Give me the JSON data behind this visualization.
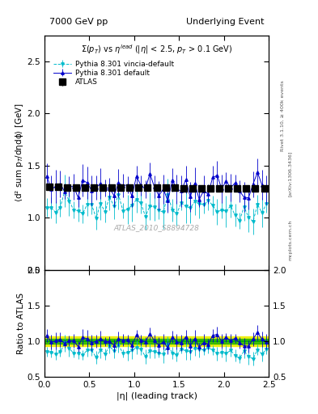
{
  "title_left": "7000 GeV pp",
  "title_right": "Underlying Event",
  "subtitle": "Σ(p$_{T}$) vs η$^{lead}$ (|η| < 2.5, p$_{T}$ > 0.1 GeV)",
  "ylabel_main": "⟨d² sum p$_{T}$/dηdϕ⟩ [GeV]",
  "ylabel_ratio": "Ratio to ATLAS",
  "xlabel": "|η| (leading track)",
  "watermark": "ATLAS_2010_S8894728",
  "rivet_label": "Rivet 3.1.10, ≥ 400k events",
  "arxiv_label": "[arXiv:1306.3436]",
  "mcplots_label": "mcplots.cern.ch",
  "ylim_main": [
    0.5,
    2.75
  ],
  "ylim_ratio": [
    0.5,
    2.0
  ],
  "yticks_main": [
    0.5,
    1.0,
    1.5,
    2.0,
    2.5
  ],
  "yticks_ratio": [
    0.5,
    1.0,
    1.5,
    2.0
  ],
  "xlim": [
    0,
    2.5
  ],
  "color_atlas": "#000000",
  "color_default": "#0000cc",
  "color_vincia": "#00bbcc",
  "band_yellow": "#eeee00",
  "band_green": "#00aa00",
  "line_green": "#00aa00",
  "background_color": "#ffffff",
  "legend_labels": [
    "ATLAS",
    "Pythia 8.301 default",
    "Pythia 8.301 vincia-default"
  ],
  "atlas_seed": 12,
  "mc_seed": 7,
  "n_atlas": 25,
  "n_mc": 50
}
